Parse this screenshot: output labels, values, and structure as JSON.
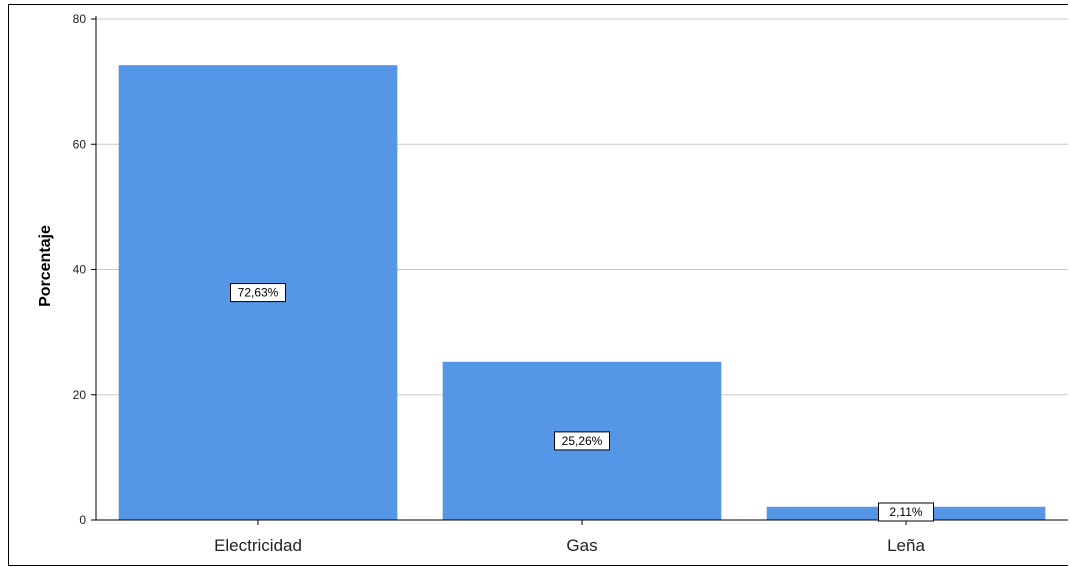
{
  "chart_data": {
    "type": "bar",
    "categories": [
      "Electricidad",
      "Gas",
      "Leña"
    ],
    "values": [
      72.63,
      25.26,
      2.11
    ],
    "data_labels": [
      "72,63%",
      "25,26%",
      "2,11%"
    ],
    "ylabel": "Porcentaje",
    "xlabel": "",
    "ylim": [
      0,
      80
    ],
    "yticks": [
      0,
      20,
      40,
      60,
      80
    ],
    "grid": true,
    "colors": {
      "bar": "#5596e6",
      "grid": "#c8c8c8"
    }
  }
}
